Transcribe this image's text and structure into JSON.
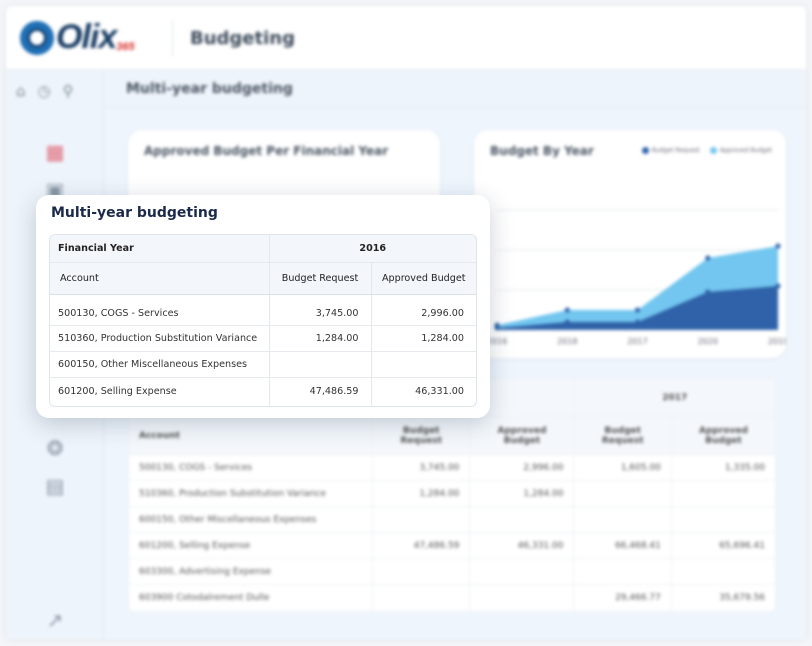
{
  "header": {
    "logo_text": "Olix",
    "logo_sub": "365",
    "app_title": "Budgeting"
  },
  "sidebar": {
    "top_icons": [
      "home-icon",
      "history-icon",
      "pin-icon"
    ],
    "items": [
      "dashboard-grid-icon",
      "report-icon",
      "budget-icon",
      "document-icon",
      "export-icon"
    ]
  },
  "subheader": {
    "title": "Multi-year budgeting"
  },
  "left_chart": {
    "title": "Approved Budget Per Financial Year"
  },
  "chart_data": {
    "type": "area",
    "title": "Budget By Year",
    "categories": [
      "2016",
      "2018",
      "2017",
      "2020",
      "2019"
    ],
    "ylim": [
      0,
      3
    ],
    "grid": true,
    "legend": "top-right",
    "series": [
      {
        "name": "Budget Request",
        "color": "#2f62a8",
        "values": [
          0.05,
          0.2,
          0.2,
          0.95,
          1.1
        ]
      },
      {
        "name": "Approved Budget",
        "color": "#72c6ef",
        "values": [
          0.12,
          0.5,
          0.5,
          1.8,
          2.1
        ]
      }
    ]
  },
  "background_table": {
    "year": "2017",
    "columns": [
      "Account",
      "Budget Request",
      "Approved Budget",
      "Budget Request",
      "Approved Budget"
    ],
    "rows": [
      [
        "500130, COGS - Services",
        "3,745.00",
        "2,996.00",
        "1,605.00",
        "1,335.00"
      ],
      [
        "510360, Production Substitution Variance",
        "1,284.00",
        "1,284.00",
        "",
        ""
      ],
      [
        "600150, Other Miscellaneous Expenses",
        "",
        "",
        "",
        ""
      ],
      [
        "601200, Selling Expense",
        "47,486.59",
        "46,331.00",
        "66,468.41",
        "65,696.41"
      ],
      [
        "603300, Advertising Expense",
        "",
        "",
        "",
        ""
      ],
      [
        "603900 Cotodalrement Dulle",
        "",
        "",
        "29,466.77",
        "35,679.56"
      ]
    ]
  },
  "popup": {
    "title": "Multi-year budgeting",
    "financial_year_label": "Financial Year",
    "year": "2016",
    "columns": [
      "Account",
      "Budget Request",
      "Approved Budget"
    ],
    "rows": [
      [
        "500130, COGS - Services",
        "3,745.00",
        "2,996.00"
      ],
      [
        "510360, Production Substitution Variance",
        "1,284.00",
        "1,284.00"
      ],
      [
        "600150, Other Miscellaneous Expenses",
        "",
        ""
      ],
      [
        "601200, Selling Expense",
        "47,486.59",
        "46,331.00"
      ]
    ]
  }
}
